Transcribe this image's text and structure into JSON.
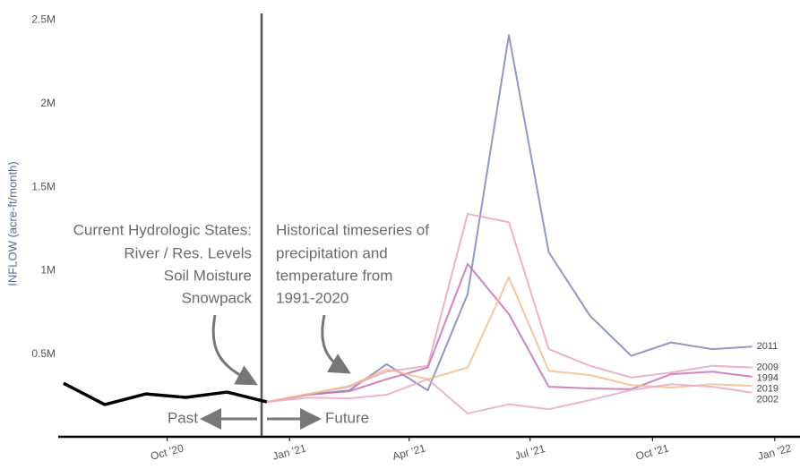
{
  "chart_data": {
    "type": "line",
    "y_label": "INFLOW (acre-ft/month)",
    "x": [
      "2020-07",
      "2020-08",
      "2020-09",
      "2020-10",
      "2020-11",
      "2020-12",
      "2021-01",
      "2021-02",
      "2021-03",
      "2021-04",
      "2021-05",
      "2021-06",
      "2021-07",
      "2021-08",
      "2021-09",
      "2021-10",
      "2021-11",
      "2021-12"
    ],
    "xlim": [
      "2020-07-11",
      "2022-01-20"
    ],
    "xticks": [
      {
        "value": "2020-10-01",
        "label": "Oct '20"
      },
      {
        "value": "2021-01-01",
        "label": "Jan '21"
      },
      {
        "value": "2021-04-01",
        "label": "Apr '21"
      },
      {
        "value": "2021-07-01",
        "label": "Jul '21"
      },
      {
        "value": "2021-10-01",
        "label": "Oct '21"
      },
      {
        "value": "2022-01-01",
        "label": "Jan '22"
      }
    ],
    "ylim": [
      0,
      2540000
    ],
    "yticks": [
      {
        "value": 500000,
        "label": "0.5M"
      },
      {
        "value": 1000000,
        "label": "1M"
      },
      {
        "value": 1500000,
        "label": "1.5M"
      },
      {
        "value": 2000000,
        "label": "2M"
      },
      {
        "value": 2500000,
        "label": "2.5M"
      }
    ],
    "series": [
      {
        "color": "#000000",
        "values": [
          326000,
          198000,
          262000,
          241000,
          273000,
          214000,
          null,
          null,
          null,
          null,
          null,
          null,
          null,
          null,
          null,
          null,
          null,
          null
        ]
      },
      {
        "name": "2011",
        "color": "#7b86bc",
        "values": [
          null,
          null,
          null,
          null,
          null,
          214000,
          257000,
          283000,
          440000,
          283000,
          860000,
          2410000,
          1110000,
          730000,
          490000,
          570000,
          530000,
          545000
        ]
      },
      {
        "name": "2009",
        "color": "#eaa3bf",
        "values": [
          null,
          null,
          null,
          null,
          null,
          214000,
          262000,
          305000,
          396000,
          430000,
          1340000,
          1290000,
          530000,
          430000,
          360000,
          390000,
          430000,
          420000
        ]
      },
      {
        "name": "1994",
        "color": "#c96fb6",
        "values": [
          null,
          null,
          null,
          null,
          null,
          214000,
          257000,
          278000,
          350000,
          420000,
          1040000,
          740000,
          305000,
          295000,
          290000,
          380000,
          395000,
          365000
        ]
      },
      {
        "name": "2019",
        "color": "#f2bd8c",
        "values": [
          null,
          null,
          null,
          null,
          null,
          214000,
          260000,
          310000,
          410000,
          350000,
          420000,
          960000,
          400000,
          375000,
          315000,
          300000,
          320000,
          310000
        ]
      },
      {
        "name": "2002",
        "color": "#eaa8cb",
        "values": [
          null,
          null,
          null,
          null,
          null,
          214000,
          240000,
          235000,
          257000,
          350000,
          145000,
          200000,
          170000,
          225000,
          285000,
          320000,
          305000,
          270000
        ]
      }
    ],
    "annotations": {
      "current": [
        "Current Hydrologic States:",
        "River / Res. Levels",
        "Soil Moisture",
        "Snowpack"
      ],
      "historical": [
        "Historical timeseries of",
        "precipitation and",
        "temperature from",
        "1991-2020"
      ],
      "past": "Past",
      "future": "Future"
    }
  }
}
